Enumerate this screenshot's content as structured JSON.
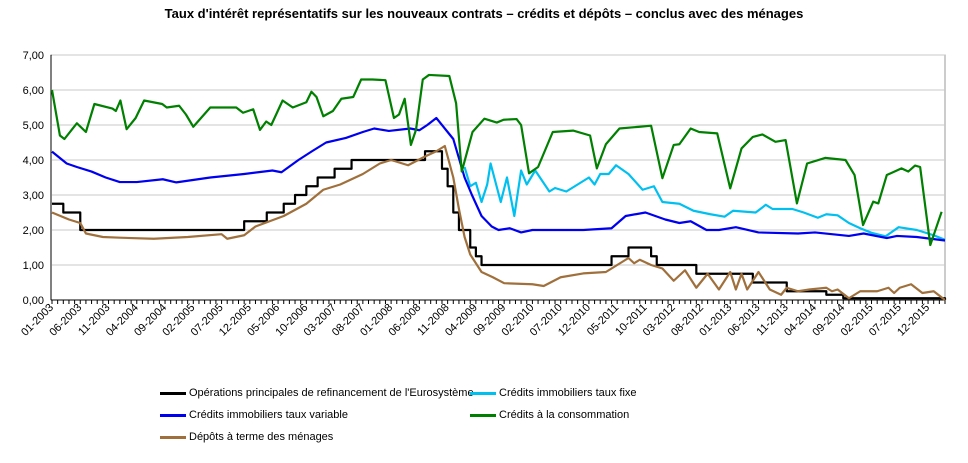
{
  "chart_data": {
    "type": "line",
    "title": "Taux d'intérêt représentatifs  sur les nouveaux contrats – crédits et dépôts – conclus avec des ménages",
    "xlabel": "",
    "ylabel": "",
    "x_unit": "months since 01-2003",
    "xlim": [
      0,
      158
    ],
    "ylim": [
      0,
      7
    ],
    "grid": true,
    "legend_position": "bottom",
    "y_ticks": [
      "0,00",
      "1,00",
      "2,00",
      "3,00",
      "4,00",
      "5,00",
      "6,00",
      "7,00"
    ],
    "x_ticks": [
      "01-2003",
      "06-2003",
      "11-2003",
      "04-2004",
      "09-2004",
      "02-2005",
      "07-2005",
      "12-2005",
      "05-2006",
      "10-2006",
      "03-2007",
      "08-2007",
      "01-2008",
      "06-2008",
      "11-2008",
      "04-2009",
      "09-2009",
      "02-2010",
      "07-2010",
      "12-2010",
      "05-2011",
      "10-2011",
      "03-2012",
      "08-2012",
      "01-2013",
      "06-2013",
      "11-2013",
      "04-2014",
      "09-2014",
      "02-2015",
      "07-2015",
      "12-2015"
    ],
    "series": [
      {
        "name": "Opérations principales de refinancement de l'Eurosystème",
        "color": "#000000",
        "step": true,
        "points": [
          [
            0,
            2.75
          ],
          [
            2,
            2.5
          ],
          [
            5,
            2.0
          ],
          [
            34,
            2.25
          ],
          [
            38,
            2.5
          ],
          [
            41,
            2.75
          ],
          [
            43,
            3.0
          ],
          [
            45,
            3.25
          ],
          [
            47,
            3.5
          ],
          [
            50,
            3.75
          ],
          [
            53,
            4.0
          ],
          [
            66,
            4.25
          ],
          [
            69,
            3.75
          ],
          [
            70,
            3.25
          ],
          [
            71,
            2.5
          ],
          [
            72,
            2.0
          ],
          [
            74,
            1.5
          ],
          [
            75,
            1.25
          ],
          [
            76,
            1.0
          ],
          [
            99,
            1.25
          ],
          [
            102,
            1.5
          ],
          [
            106,
            1.25
          ],
          [
            107,
            1.0
          ],
          [
            114,
            0.75
          ],
          [
            124,
            0.5
          ],
          [
            130,
            0.25
          ],
          [
            137,
            0.15
          ],
          [
            140,
            0.05
          ],
          [
            157,
            0.05
          ],
          [
            158,
            0.0
          ]
        ]
      },
      {
        "name": "Crédits immobiliers taux fixe",
        "color": "#00C0F0",
        "step": false,
        "points": [
          [
            73,
            3.8
          ],
          [
            74,
            3.25
          ],
          [
            75,
            3.35
          ],
          [
            76,
            2.8
          ],
          [
            77,
            3.3
          ],
          [
            77.6,
            3.9
          ],
          [
            79.4,
            2.8
          ],
          [
            80.5,
            3.5
          ],
          [
            81.8,
            2.4
          ],
          [
            83,
            3.7
          ],
          [
            84,
            3.3
          ],
          [
            85.5,
            3.7
          ],
          [
            88,
            3.1
          ],
          [
            89,
            3.2
          ],
          [
            91,
            3.1
          ],
          [
            93,
            3.3
          ],
          [
            95,
            3.5
          ],
          [
            96,
            3.3
          ],
          [
            97,
            3.6
          ],
          [
            98.5,
            3.6
          ],
          [
            99.8,
            3.85
          ],
          [
            102,
            3.6
          ],
          [
            104.5,
            3.15
          ],
          [
            106.5,
            3.25
          ],
          [
            108,
            2.8
          ],
          [
            111,
            2.75
          ],
          [
            113.5,
            2.55
          ],
          [
            116.5,
            2.45
          ],
          [
            119,
            2.38
          ],
          [
            120.5,
            2.55
          ],
          [
            124.5,
            2.5
          ],
          [
            126.3,
            2.72
          ],
          [
            127.5,
            2.6
          ],
          [
            131,
            2.6
          ],
          [
            133,
            2.5
          ],
          [
            135.5,
            2.35
          ],
          [
            137,
            2.45
          ],
          [
            139,
            2.42
          ],
          [
            141,
            2.2
          ],
          [
            143,
            2.05
          ],
          [
            145,
            1.92
          ],
          [
            147.5,
            1.82
          ],
          [
            149.8,
            2.08
          ],
          [
            153,
            2.0
          ],
          [
            156,
            1.85
          ],
          [
            158,
            1.72
          ]
        ]
      },
      {
        "name": "Crédits immobiliers taux variable",
        "color": "#0000F0",
        "step": false,
        "points": [
          [
            0,
            4.24
          ],
          [
            2.6,
            3.9
          ],
          [
            4.4,
            3.8
          ],
          [
            7,
            3.67
          ],
          [
            9.5,
            3.5
          ],
          [
            12,
            3.37
          ],
          [
            15,
            3.37
          ],
          [
            19.6,
            3.45
          ],
          [
            22,
            3.36
          ],
          [
            28,
            3.5
          ],
          [
            34,
            3.6
          ],
          [
            39,
            3.7
          ],
          [
            40.6,
            3.65
          ],
          [
            43.6,
            4.0
          ],
          [
            46,
            4.25
          ],
          [
            48.5,
            4.5
          ],
          [
            52,
            4.63
          ],
          [
            55,
            4.8
          ],
          [
            57,
            4.9
          ],
          [
            59.6,
            4.83
          ],
          [
            63.4,
            4.9
          ],
          [
            65,
            4.85
          ],
          [
            66.4,
            5.0
          ],
          [
            68,
            5.2
          ],
          [
            70,
            4.8
          ],
          [
            71,
            4.6
          ],
          [
            73,
            3.5
          ],
          [
            74.3,
            3.0
          ],
          [
            76,
            2.4
          ],
          [
            77.8,
            2.1
          ],
          [
            79,
            2.0
          ],
          [
            81,
            2.05
          ],
          [
            83,
            1.93
          ],
          [
            85,
            2.0
          ],
          [
            94,
            2.0
          ],
          [
            99,
            2.05
          ],
          [
            101.5,
            2.4
          ],
          [
            105,
            2.5
          ],
          [
            108.5,
            2.3
          ],
          [
            111,
            2.2
          ],
          [
            113,
            2.25
          ],
          [
            115.8,
            2.0
          ],
          [
            118,
            2.0
          ],
          [
            121,
            2.08
          ],
          [
            125,
            1.93
          ],
          [
            132,
            1.9
          ],
          [
            135,
            1.93
          ],
          [
            141,
            1.83
          ],
          [
            143.6,
            1.9
          ],
          [
            147.7,
            1.77
          ],
          [
            149.5,
            1.83
          ],
          [
            153,
            1.8
          ],
          [
            158,
            1.7
          ]
        ]
      },
      {
        "name": "Crédits à la consommation",
        "color": "#008000",
        "step": false,
        "points": [
          [
            0,
            6.0
          ],
          [
            1.4,
            4.7
          ],
          [
            2.2,
            4.6
          ],
          [
            4.4,
            5.05
          ],
          [
            6,
            4.8
          ],
          [
            7.5,
            5.6
          ],
          [
            10.7,
            5.47
          ],
          [
            11.3,
            5.4
          ],
          [
            12.1,
            5.7
          ],
          [
            13.2,
            4.88
          ],
          [
            14.8,
            5.2
          ],
          [
            16.3,
            5.7
          ],
          [
            19.5,
            5.6
          ],
          [
            20.3,
            5.5
          ],
          [
            22.5,
            5.55
          ],
          [
            23.7,
            5.3
          ],
          [
            25,
            4.95
          ],
          [
            28,
            5.5
          ],
          [
            30,
            5.5
          ],
          [
            32.6,
            5.5
          ],
          [
            33.8,
            5.35
          ],
          [
            35.6,
            5.45
          ],
          [
            36.8,
            4.86
          ],
          [
            37.9,
            5.1
          ],
          [
            38.8,
            5.0
          ],
          [
            40.8,
            5.7
          ],
          [
            42.6,
            5.5
          ],
          [
            45,
            5.65
          ],
          [
            45.9,
            5.95
          ],
          [
            46.8,
            5.8
          ],
          [
            48,
            5.25
          ],
          [
            49.7,
            5.4
          ],
          [
            51.2,
            5.75
          ],
          [
            53.3,
            5.8
          ],
          [
            54.7,
            6.3
          ],
          [
            56.7,
            6.3
          ],
          [
            59,
            6.28
          ],
          [
            60.5,
            5.2
          ],
          [
            61.4,
            5.3
          ],
          [
            62.4,
            5.75
          ],
          [
            63.5,
            4.43
          ],
          [
            64.4,
            4.86
          ],
          [
            65.6,
            6.3
          ],
          [
            66.7,
            6.43
          ],
          [
            70.3,
            6.4
          ],
          [
            71.5,
            5.62
          ],
          [
            72.5,
            3.67
          ],
          [
            74.4,
            4.8
          ],
          [
            76.5,
            5.18
          ],
          [
            78.7,
            5.07
          ],
          [
            79.9,
            5.15
          ],
          [
            82.2,
            5.17
          ],
          [
            83,
            5.0
          ],
          [
            84.4,
            3.62
          ],
          [
            86,
            3.8
          ],
          [
            88.6,
            4.8
          ],
          [
            92.2,
            4.84
          ],
          [
            95.2,
            4.7
          ],
          [
            96.4,
            3.76
          ],
          [
            98,
            4.45
          ],
          [
            100.4,
            4.9
          ],
          [
            104,
            4.95
          ],
          [
            106,
            4.98
          ],
          [
            108,
            3.48
          ],
          [
            110,
            4.43
          ],
          [
            111,
            4.45
          ],
          [
            113,
            4.9
          ],
          [
            114.5,
            4.8
          ],
          [
            117.7,
            4.76
          ],
          [
            120,
            3.19
          ],
          [
            122,
            4.33
          ],
          [
            124,
            4.66
          ],
          [
            125.7,
            4.73
          ],
          [
            128,
            4.52
          ],
          [
            129.8,
            4.57
          ],
          [
            131.8,
            2.76
          ],
          [
            133.6,
            3.9
          ],
          [
            136.8,
            4.06
          ],
          [
            140.4,
            4.0
          ],
          [
            142,
            3.57
          ],
          [
            143.5,
            2.14
          ],
          [
            145.3,
            2.81
          ],
          [
            146.2,
            2.76
          ],
          [
            147.7,
            3.57
          ],
          [
            150.3,
            3.76
          ],
          [
            151.5,
            3.67
          ],
          [
            152.7,
            3.84
          ],
          [
            153.6,
            3.8
          ],
          [
            155.4,
            1.57
          ],
          [
            157.4,
            2.52
          ]
        ]
      },
      {
        "name": "Dépôts à terme des ménages",
        "color": "#A0703C",
        "step": false,
        "points": [
          [
            0,
            2.5
          ],
          [
            3,
            2.3
          ],
          [
            5,
            2.2
          ],
          [
            6,
            1.9
          ],
          [
            9,
            1.8
          ],
          [
            12,
            1.78
          ],
          [
            18,
            1.75
          ],
          [
            24,
            1.8
          ],
          [
            30,
            1.88
          ],
          [
            31,
            1.75
          ],
          [
            34,
            1.85
          ],
          [
            36,
            2.1
          ],
          [
            41,
            2.4
          ],
          [
            45,
            2.75
          ],
          [
            48,
            3.15
          ],
          [
            51,
            3.3
          ],
          [
            55,
            3.6
          ],
          [
            58,
            3.9
          ],
          [
            60,
            4.0
          ],
          [
            63,
            3.85
          ],
          [
            66,
            4.1
          ],
          [
            68,
            4.25
          ],
          [
            69.5,
            4.4
          ],
          [
            71,
            3.5
          ],
          [
            72,
            2.6
          ],
          [
            73,
            1.8
          ],
          [
            74,
            1.3
          ],
          [
            76,
            0.8
          ],
          [
            78,
            0.65
          ],
          [
            80,
            0.48
          ],
          [
            85,
            0.45
          ],
          [
            87,
            0.4
          ],
          [
            90,
            0.65
          ],
          [
            94,
            0.76
          ],
          [
            98,
            0.8
          ],
          [
            100,
            1.0
          ],
          [
            102,
            1.2
          ],
          [
            103,
            1.05
          ],
          [
            104,
            1.15
          ],
          [
            106,
            1.0
          ],
          [
            108,
            0.9
          ],
          [
            110,
            0.55
          ],
          [
            112,
            0.85
          ],
          [
            114,
            0.35
          ],
          [
            116,
            0.75
          ],
          [
            118,
            0.3
          ],
          [
            120,
            0.8
          ],
          [
            121,
            0.3
          ],
          [
            122,
            0.75
          ],
          [
            123,
            0.3
          ],
          [
            125,
            0.8
          ],
          [
            127,
            0.3
          ],
          [
            129,
            0.15
          ],
          [
            130,
            0.35
          ],
          [
            132,
            0.25
          ],
          [
            134,
            0.3
          ],
          [
            137,
            0.35
          ],
          [
            138,
            0.25
          ],
          [
            139,
            0.3
          ],
          [
            141,
            0.05
          ],
          [
            143,
            0.25
          ],
          [
            146,
            0.25
          ],
          [
            148,
            0.35
          ],
          [
            149,
            0.2
          ],
          [
            150,
            0.35
          ],
          [
            152,
            0.45
          ],
          [
            154,
            0.2
          ],
          [
            156,
            0.25
          ],
          [
            158,
            0.0
          ]
        ]
      }
    ]
  }
}
